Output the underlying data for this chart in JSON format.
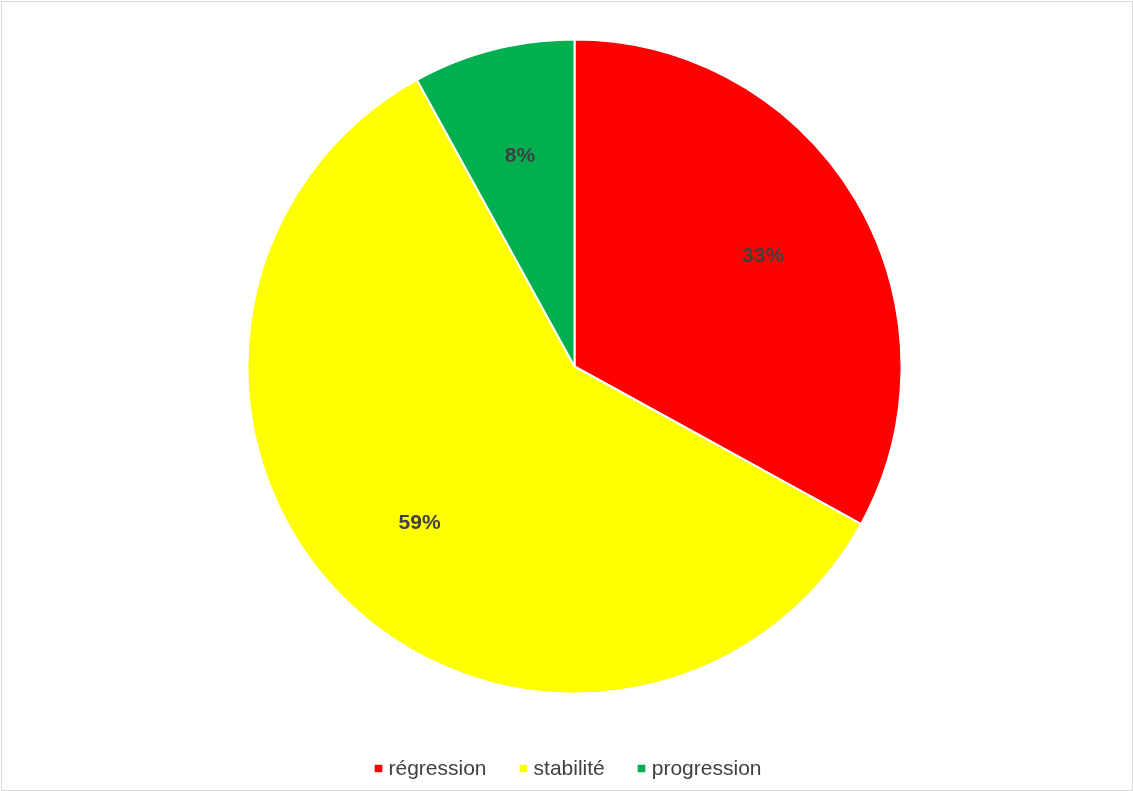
{
  "chart_data": {
    "type": "pie",
    "categories": [
      "régression",
      "stabilité",
      "progression"
    ],
    "values": [
      33,
      59,
      8
    ],
    "colors": [
      "#ff0000",
      "#ffff00",
      "#00b050"
    ],
    "value_labels": [
      "33%",
      "59%",
      "8%"
    ],
    "legend": "bottom"
  }
}
